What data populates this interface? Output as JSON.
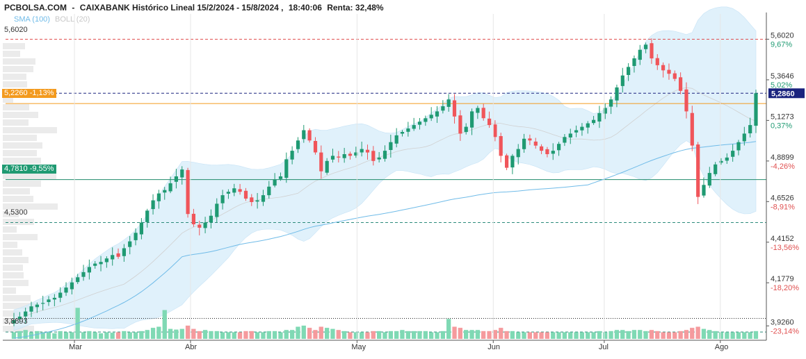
{
  "header": {
    "source": "PCBOLSA.COM",
    "sep": "-",
    "title": "CAIXABANK Histórico Lineal 15/2/2024 - 15/8/2024 ,",
    "time": "18:40:06",
    "return": "Renta: 32,48%"
  },
  "legend": {
    "sma": "SMA (100)",
    "boll": "BOLL (20)"
  },
  "levels": {
    "high": {
      "text": "5,6020"
    },
    "orange": {
      "text": "5,2260 -1,13%"
    },
    "green": {
      "text": "4,7810 -9,55%"
    },
    "low": {
      "text": "4,5300"
    },
    "base": {
      "text": "3,8893"
    }
  },
  "colors": {
    "up": "#1f9a72",
    "down": "#f0555a",
    "bollinger": "#d6ecfa",
    "sma": "#6fbbe8",
    "orange": "#f39a1e",
    "navy": "#1a237e"
  },
  "chart_data": {
    "type": "candlestick",
    "title": "CAIXABANK Histórico Lineal 15/2/2024 - 15/8/2024",
    "xlabel": "",
    "ylabel": "",
    "ylim": [
      3.85,
      5.75
    ],
    "x_ticks": [
      "Mar",
      "Abr",
      "May",
      "Jun",
      "Jul",
      "Ago"
    ],
    "y_ticks": [
      {
        "value": 5.602,
        "label": "5,6020",
        "pct": "9,67%"
      },
      {
        "value": 5.3646,
        "label": "5,3646",
        "pct": "5,02%"
      },
      {
        "value": 5.1273,
        "label": "5,1273",
        "pct": "0,37%"
      },
      {
        "value": 4.8899,
        "label": "4,8899",
        "pct": "-4,26%"
      },
      {
        "value": 4.6526,
        "label": "4,6526",
        "pct": "-8,91%"
      },
      {
        "value": 4.4152,
        "label": "4,4152",
        "pct": "-13,56%"
      },
      {
        "value": 4.1779,
        "label": "4,1779",
        "pct": "-18,20%"
      },
      {
        "value": 3.926,
        "label": "3,9260",
        "pct": "-23,14%"
      }
    ],
    "last_price": {
      "value": 5.286,
      "label": "5,2860"
    },
    "reference_lines": [
      {
        "value": 5.602,
        "style": "dashed-red"
      },
      {
        "value": 5.286,
        "style": "dashed-navy"
      },
      {
        "value": 5.226,
        "style": "solid-orange"
      },
      {
        "value": 4.781,
        "style": "solid-green"
      },
      {
        "value": 4.53,
        "style": "dashed-teal"
      },
      {
        "value": 3.97,
        "style": "dotted-black"
      },
      {
        "value": 3.89,
        "style": "dashed-teal"
      }
    ],
    "closes": [
      3.96,
      3.98,
      4.01,
      4.04,
      4.05,
      4.06,
      4.08,
      4.09,
      4.12,
      4.15,
      4.18,
      4.21,
      4.24,
      4.27,
      4.29,
      4.3,
      4.32,
      4.34,
      4.33,
      4.38,
      4.42,
      4.47,
      4.53,
      4.6,
      4.66,
      4.7,
      4.72,
      4.76,
      4.8,
      4.84,
      4.58,
      4.52,
      4.5,
      4.53,
      4.57,
      4.64,
      4.69,
      4.71,
      4.73,
      4.71,
      4.67,
      4.65,
      4.66,
      4.69,
      4.74,
      4.78,
      4.8,
      4.9,
      4.95,
      5.01,
      5.07,
      5.01,
      4.94,
      4.83,
      4.89,
      4.92,
      4.91,
      4.93,
      4.92,
      4.94,
      4.96,
      4.94,
      4.89,
      4.91,
      4.95,
      5.0,
      5.04,
      5.06,
      5.08,
      5.1,
      5.12,
      5.14,
      5.16,
      5.18,
      5.21,
      5.25,
      5.15,
      5.05,
      5.09,
      5.18,
      5.2,
      5.14,
      5.1,
      5.03,
      4.92,
      4.85,
      4.92,
      4.96,
      5.02,
      5.01,
      4.98,
      4.95,
      4.93,
      4.95,
      4.99,
      5.03,
      5.05,
      5.07,
      5.09,
      5.11,
      5.13,
      5.17,
      5.2,
      5.25,
      5.32,
      5.39,
      5.44,
      5.49,
      5.54,
      5.57,
      5.49,
      5.45,
      5.42,
      5.4,
      5.37,
      5.3,
      5.18,
      4.98,
      4.68,
      4.75,
      4.82,
      4.87,
      4.89,
      4.91,
      4.95,
      5.0,
      5.05,
      5.1,
      5.286
    ],
    "volumes_relative": [
      0.3,
      0.35,
      0.4,
      0.3,
      0.35,
      0.3,
      0.3,
      0.25,
      0.35,
      0.3,
      0.3,
      0.25,
      0.3,
      0.35,
      0.3,
      0.25,
      0.3,
      0.28,
      0.3,
      0.35,
      0.3,
      0.3,
      0.35,
      0.4,
      0.5,
      0.55,
      0.5,
      0.45,
      0.42,
      0.45,
      0.6,
      0.45,
      0.35,
      0.4,
      0.35,
      0.35,
      0.3,
      0.3,
      0.3,
      0.3,
      0.35,
      0.35,
      0.3,
      0.3,
      0.35,
      0.35,
      0.3,
      0.4,
      0.4,
      0.55,
      0.6,
      0.5,
      0.4,
      0.55,
      0.5,
      0.45,
      0.4,
      0.35,
      0.3,
      0.3,
      0.3,
      0.3,
      0.35,
      0.35,
      0.3,
      0.35,
      0.35,
      0.4,
      0.35,
      0.35,
      0.35,
      0.35,
      0.3,
      0.3,
      0.35,
      0.9,
      0.55,
      0.5,
      0.4,
      0.4,
      0.4,
      0.35,
      0.35,
      0.4,
      0.5,
      0.35,
      0.35,
      0.3,
      0.3,
      0.3,
      0.3,
      0.3,
      0.3,
      0.3,
      0.3,
      0.3,
      0.3,
      0.3,
      0.3,
      0.3,
      0.3,
      0.35,
      0.3,
      0.35,
      0.4,
      0.4,
      0.35,
      0.4,
      0.4,
      0.35,
      0.4,
      0.35,
      0.3,
      0.3,
      0.3,
      0.35,
      0.4,
      0.5,
      0.55,
      0.45,
      0.4,
      0.35,
      0.3,
      0.3,
      0.3,
      0.3,
      0.3,
      0.3,
      0.35
    ],
    "volume_spikes": [
      {
        "index": 11,
        "rel": 1.4
      },
      {
        "index": 26,
        "rel": 1.3
      }
    ]
  }
}
